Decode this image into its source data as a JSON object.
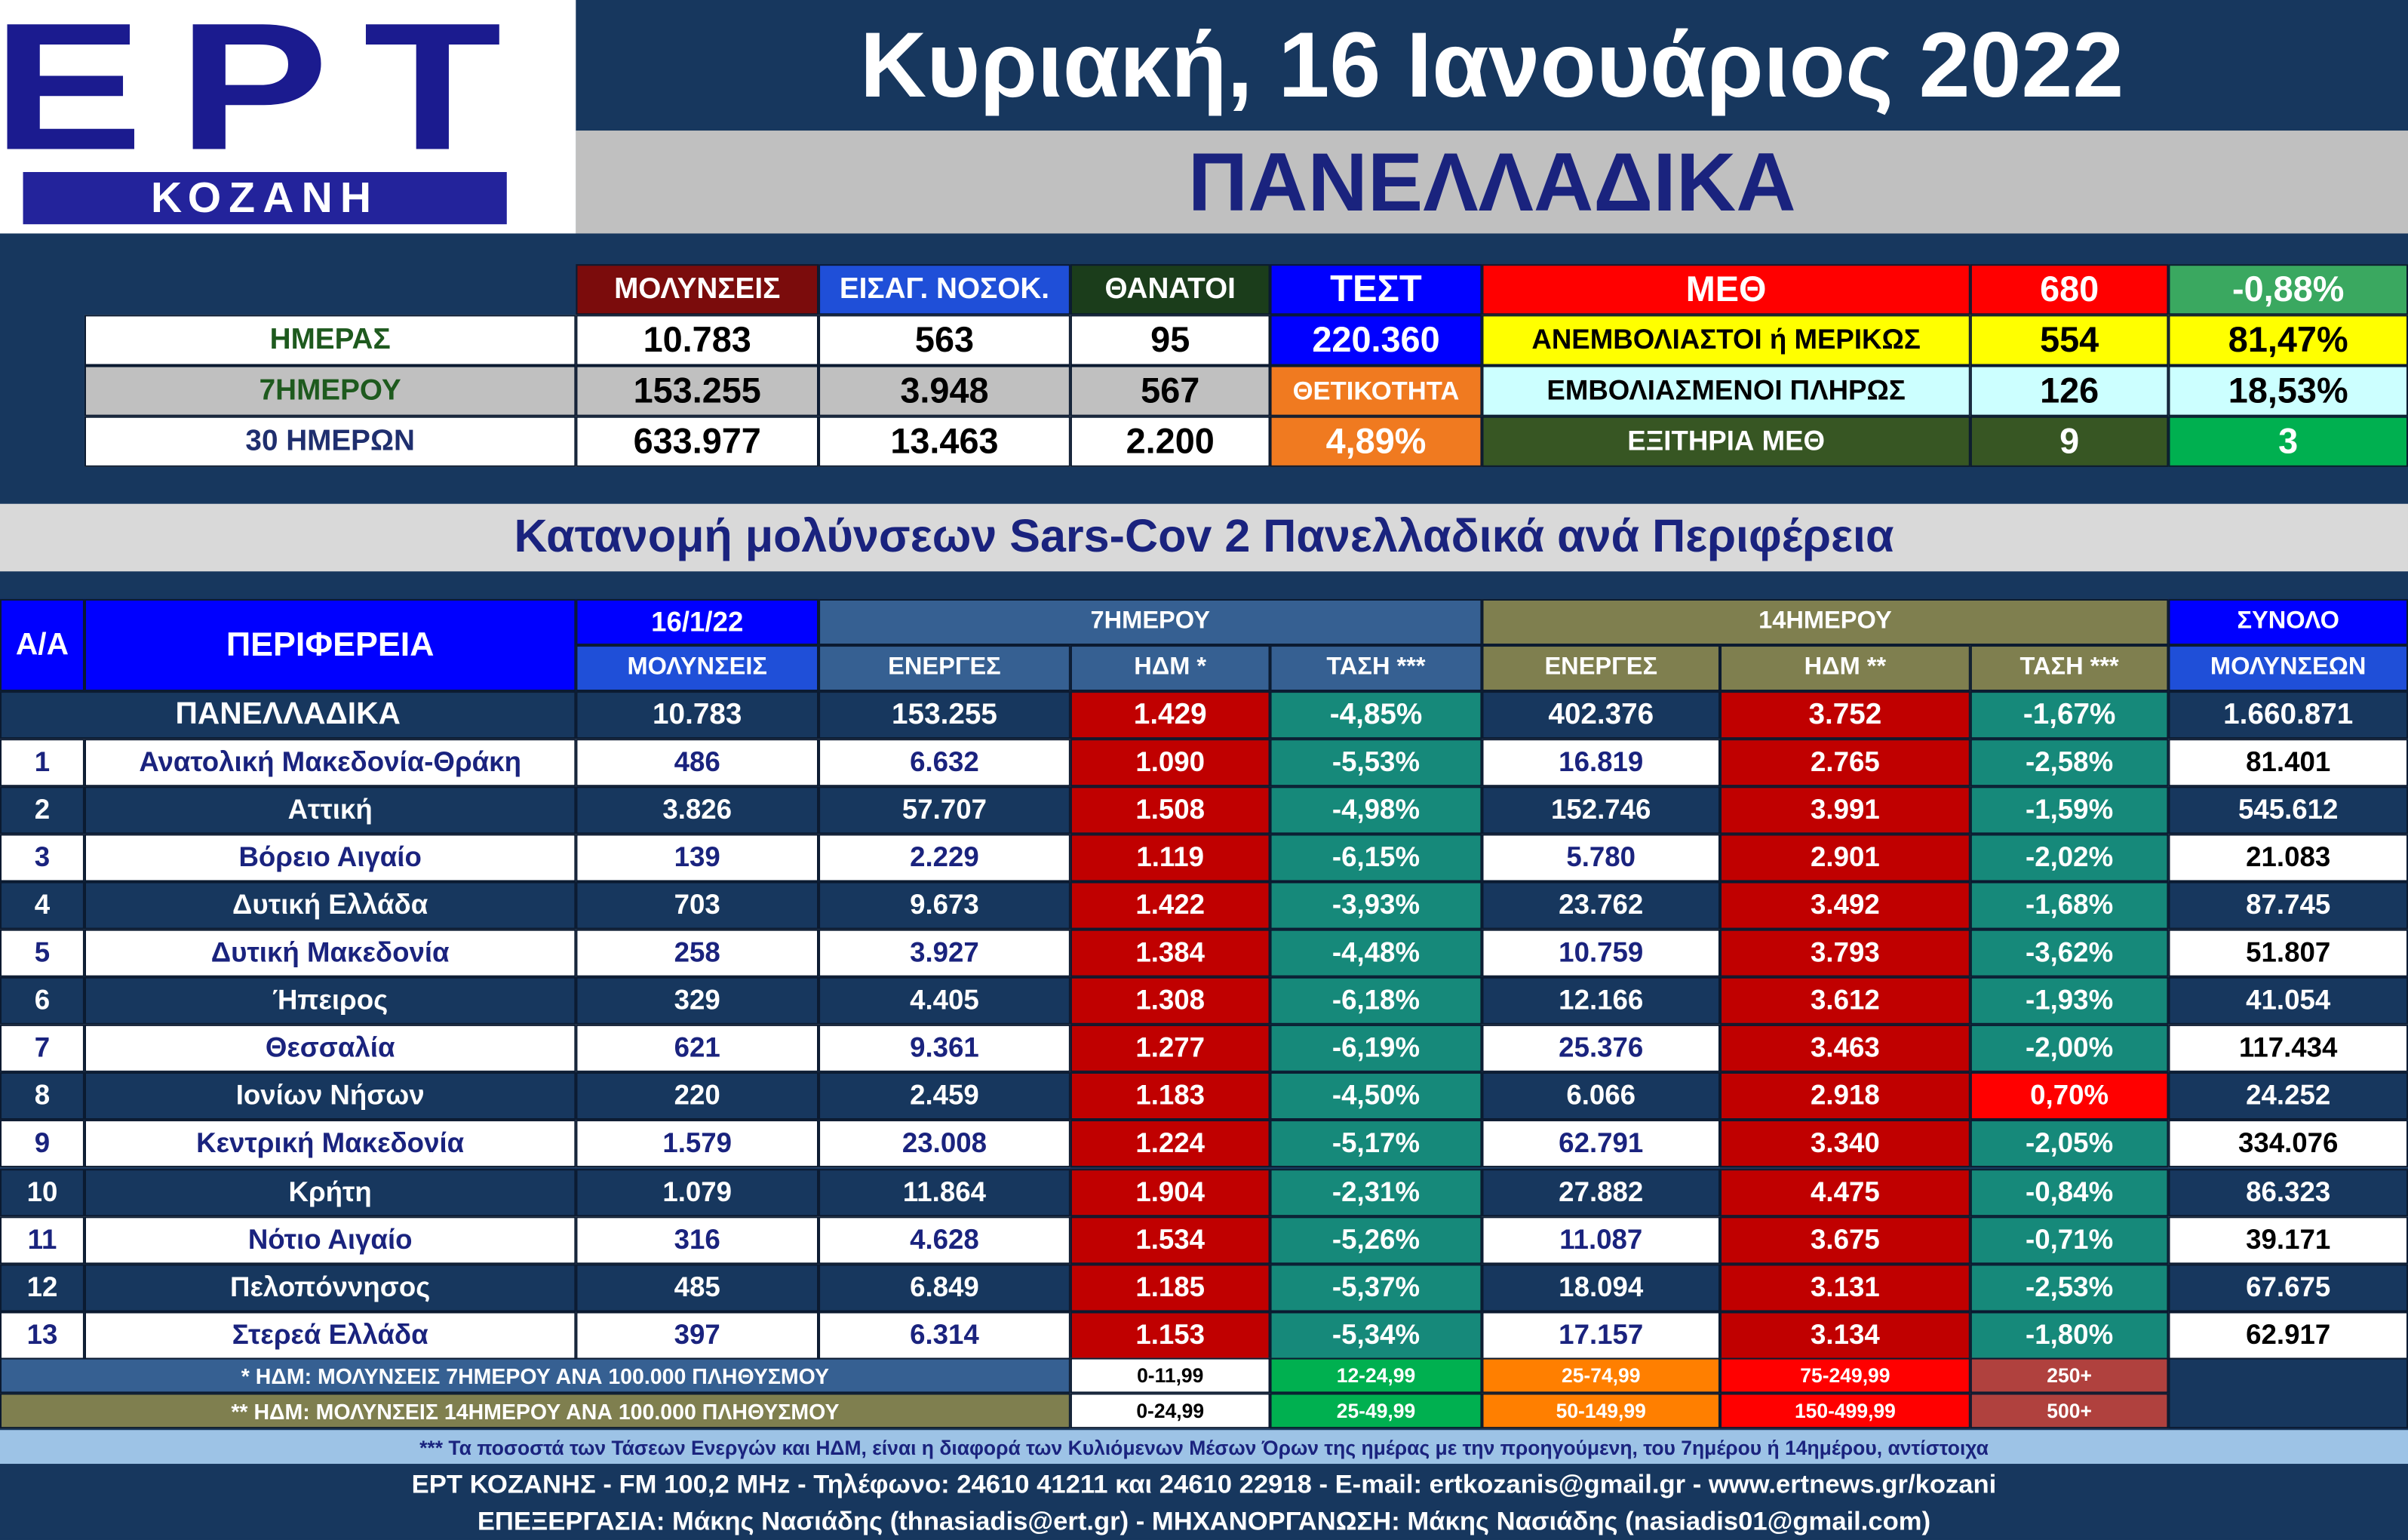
{
  "header": {
    "logo": "ΕΡΤ",
    "logo_sub": "ΚΟΖΑΝΗ",
    "date": "Κυριακή, 16 Ιανουάριος 2022",
    "scope": "ΠΑΝΕΛΛΑΔΙΚΑ"
  },
  "summary": {
    "columns": [
      "ΜΟΛΥΝΣΕΙΣ",
      "ΕΙΣΑΓ. ΝΟΣΟΚ.",
      "ΘΑΝΑΤΟΙ",
      "ΤΕΣΤ"
    ],
    "rows": [
      [
        "ΗΜΕΡΑΣ",
        "10.783",
        "563",
        "95",
        "220.360"
      ],
      [
        "7ΗΜΕΡΟΥ",
        "153.255",
        "3.948",
        "567",
        "ΘΕΤΙΚΟΤΗΤΑ"
      ],
      [
        "30 ΗΜΕΡΩΝ",
        "633.977",
        "13.463",
        "2.200",
        "4,89%"
      ]
    ],
    "icu": [
      [
        "ΜΕΘ",
        "680",
        "-0,88%"
      ],
      [
        "ΑΝΕΜΒΟΛΙΑΣΤΟΙ ή ΜΕΡΙΚΩΣ",
        "554",
        "81,47%"
      ],
      [
        "ΕΜΒΟΛΙΑΣΜΕΝΟΙ ΠΛΗΡΩΣ",
        "126",
        "18,53%"
      ],
      [
        "ΕΞΙΤΗΡΙΑ ΜΕΘ",
        "9",
        "3"
      ]
    ]
  },
  "table": {
    "title": "Κατανομή μολύνσεων Sars-Cov 2 Πανελλαδικά ανά Περιφέρεια",
    "headers": {
      "aa": "Α/Α",
      "region": "ΠΕΡΙΦΕΡΕΙΑ",
      "date": "16/1/22",
      "infections": "ΜΟΛΥΝΣΕΙΣ",
      "week": "7ΗΜΕΡΟΥ",
      "fortnight": "14ΗΜΕΡΟΥ",
      "total_top": "ΣΥΝΟΛΟ",
      "total_bottom": "ΜΟΛΥΝΣΕΩΝ",
      "sub": [
        "ΕΝΕΡΓΕΣ",
        "ΗΔΜ *",
        "ΤΑΣΗ ***",
        "ΕΝΕΡΓΕΣ",
        "ΗΔΜ **",
        "ΤΑΣΗ ***"
      ]
    },
    "national": {
      "label": "ΠΑΝΕΛΛΑΔΙΚΑ",
      "values": [
        "10.783",
        "153.255",
        "1.429",
        "-4,85%",
        "402.376",
        "3.752",
        "-1,67%",
        "1.660.871"
      ]
    },
    "rows": [
      [
        "1",
        "Ανατολική Μακεδονία-Θράκη",
        "486",
        "6.632",
        "1.090",
        "-5,53%",
        "16.819",
        "2.765",
        "-2,58%",
        "81.401"
      ],
      [
        "2",
        "Αττική",
        "3.826",
        "57.707",
        "1.508",
        "-4,98%",
        "152.746",
        "3.991",
        "-1,59%",
        "545.612"
      ],
      [
        "3",
        "Βόρειο Αιγαίο",
        "139",
        "2.229",
        "1.119",
        "-6,15%",
        "5.780",
        "2.901",
        "-2,02%",
        "21.083"
      ],
      [
        "4",
        "Δυτική Ελλάδα",
        "703",
        "9.673",
        "1.422",
        "-3,93%",
        "23.762",
        "3.492",
        "-1,68%",
        "87.745"
      ],
      [
        "5",
        "Δυτική Μακεδονία",
        "258",
        "3.927",
        "1.384",
        "-4,48%",
        "10.759",
        "3.793",
        "-3,62%",
        "51.807"
      ],
      [
        "6",
        "Ήπειρος",
        "329",
        "4.405",
        "1.308",
        "-6,18%",
        "12.166",
        "3.612",
        "-1,93%",
        "41.054"
      ],
      [
        "7",
        "Θεσσαλία",
        "621",
        "9.361",
        "1.277",
        "-6,19%",
        "25.376",
        "3.463",
        "-2,00%",
        "117.434"
      ],
      [
        "8",
        "Ιονίων Νήσων",
        "220",
        "2.459",
        "1.183",
        "-4,50%",
        "6.066",
        "2.918",
        "0,70%",
        "24.252"
      ],
      [
        "9",
        "Κεντρική Μακεδονία",
        "1.579",
        "23.008",
        "1.224",
        "-5,17%",
        "62.791",
        "3.340",
        "-2,05%",
        "334.076"
      ],
      [
        "10",
        "Κρήτη",
        "1.079",
        "11.864",
        "1.904",
        "-2,31%",
        "27.882",
        "4.475",
        "-0,84%",
        "86.323"
      ],
      [
        "11",
        "Νότιο Αιγαίο",
        "316",
        "4.628",
        "1.534",
        "-5,26%",
        "11.087",
        "3.675",
        "-0,71%",
        "39.171"
      ],
      [
        "12",
        "Πελοπόννησος",
        "485",
        "6.849",
        "1.185",
        "-5,37%",
        "18.094",
        "3.131",
        "-2,53%",
        "67.675"
      ],
      [
        "13",
        "Στερεά Ελλάδα",
        "397",
        "6.314",
        "1.153",
        "-5,34%",
        "17.157",
        "3.134",
        "-1,80%",
        "62.917"
      ]
    ]
  },
  "legend": [
    [
      "* ΗΔΜ: ΜΟΛΥΝΣΕΙΣ 7ΗΜΕΡΟΥ ΑΝΑ 100.000 ΠΛΗΘΥΣΜΟΥ",
      "0-11,99",
      "12-24,99",
      "25-74,99",
      "75-249,99",
      "250+"
    ],
    [
      "** ΗΔΜ: ΜΟΛΥΝΣΕΙΣ 14ΗΜΕΡΟΥ ΑΝΑ 100.000 ΠΛΗΘΥΣΜΟΥ",
      "0-24,99",
      "25-49,99",
      "50-149,99",
      "150-499,99",
      "500+"
    ]
  ],
  "note": "*** Τα ποσοστά των Τάσεων Ενεργών και ΗΔΜ, είναι η διαφορά των Κυλιόμενων Μέσων Όρων της ημέρας με την προηγούμενη, του 7ημέρου ή 14ημέρου, αντίστοιχα",
  "footer": [
    "ΕΡΤ ΚΟΖΑΝΗΣ - FM 100,2 MHz - Τηλέφωνο:  24610 41211 και 24610 22918 - E-mail: ertkozanis@gmail.gr - www.ertnews.gr/kozani",
    "ΕΠΕΞΕΡΓΑΣΙΑ: Μάκης Νασιάδης (thnasiadis@ert.gr) - ΜΗΧΑΝΟΡΓΑΝΩΣΗ: Μάκης Νασιάδης (nasiadis01@gmail.com)"
  ]
}
